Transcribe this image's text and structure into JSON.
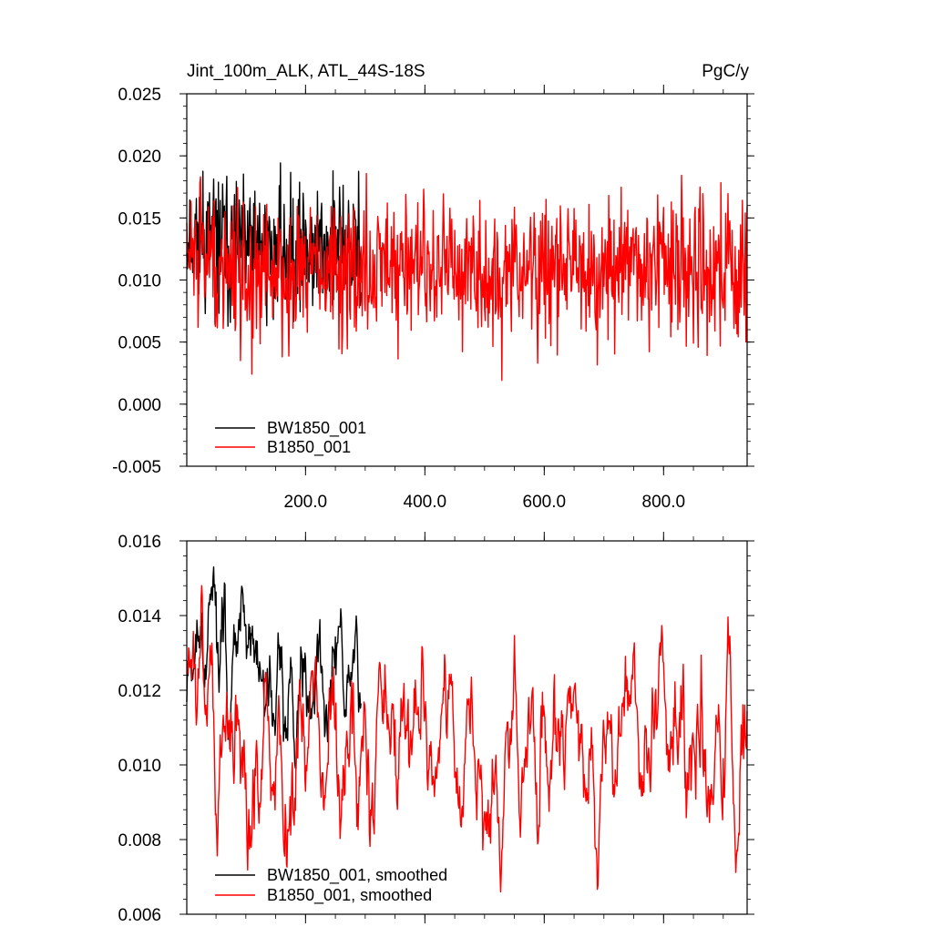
{
  "chart_data": [
    {
      "type": "line",
      "title": "Jint_100m_ALK, ATL_44S-18S",
      "units": "PgC/y",
      "xlabel": "",
      "ylabel": "",
      "xlim": [
        1,
        940
      ],
      "ylim": [
        -0.005,
        0.025
      ],
      "yticks": [
        "-0.005",
        "0.000",
        "0.005",
        "0.010",
        "0.015",
        "0.020",
        "0.025"
      ],
      "xticks": [
        "200.0",
        "400.0",
        "600.0",
        "800.0"
      ],
      "legend_position": "bottom-left",
      "series": [
        {
          "name": "BW1850_001",
          "color": "#000000",
          "x_start": 1,
          "x_end": 293,
          "mean": 0.0125,
          "sd": 0.0035,
          "smoothed": false
        },
        {
          "name": "B1850_001",
          "color": "#ff0000",
          "x_start": 1,
          "x_end": 940,
          "mean": 0.0108,
          "sd": 0.0037,
          "smoothed": false
        }
      ]
    },
    {
      "type": "line",
      "title": "",
      "units": "",
      "xlabel": "",
      "ylabel": "",
      "xlim": [
        1,
        940
      ],
      "ylim": [
        0.006,
        0.016
      ],
      "yticks": [
        "0.006",
        "0.008",
        "0.010",
        "0.012",
        "0.014",
        "0.016"
      ],
      "xticks": [],
      "legend_position": "bottom-left",
      "series": [
        {
          "name": "BW1850_001, smoothed",
          "color": "#000000",
          "x_start": 1,
          "x_end": 293,
          "smoothed": true
        },
        {
          "name": "B1850_001, smoothed",
          "color": "#ff0000",
          "x_start": 1,
          "x_end": 940,
          "smoothed": true
        }
      ]
    }
  ]
}
